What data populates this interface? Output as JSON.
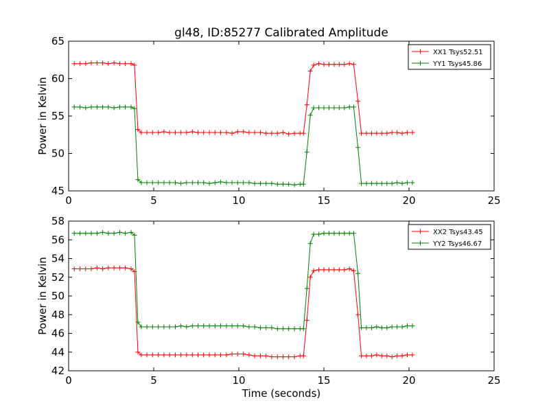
{
  "title": "gl48, ID:85277 Calibrated Amplitude",
  "chart_data": [
    {
      "type": "line",
      "title": "gl48, ID:85277 Calibrated Amplitude",
      "xlabel": "",
      "ylabel": "Power in Kelvin",
      "xlim": [
        0,
        25
      ],
      "ylim": [
        45,
        65
      ],
      "xticks": [
        0,
        5,
        10,
        15,
        20,
        25
      ],
      "yticks": [
        45,
        50,
        55,
        60,
        65
      ],
      "grid": false,
      "legend_position": "top-right",
      "x": [
        0.33,
        0.67,
        1.0,
        1.33,
        1.67,
        2.0,
        2.33,
        2.67,
        3.0,
        3.33,
        3.67,
        3.87,
        4.07,
        4.27,
        4.6,
        4.93,
        5.27,
        5.6,
        5.93,
        6.27,
        6.6,
        6.93,
        7.27,
        7.6,
        7.93,
        8.27,
        8.6,
        8.93,
        9.27,
        9.6,
        9.93,
        10.27,
        10.6,
        10.93,
        11.27,
        11.6,
        11.93,
        12.27,
        12.6,
        12.93,
        13.27,
        13.6,
        13.8,
        14.0,
        14.2,
        14.4,
        14.7,
        15.0,
        15.3,
        15.6,
        15.9,
        16.2,
        16.5,
        16.75,
        17.0,
        17.2,
        17.5,
        17.8,
        18.1,
        18.4,
        18.7,
        19.0,
        19.3,
        19.6,
        19.9,
        20.2
      ],
      "series": [
        {
          "name": "XX1 Tsys52.51",
          "color": "#ff0000",
          "values": [
            62.0,
            62.0,
            62.0,
            62.1,
            62.1,
            62.1,
            62.0,
            62.1,
            62.0,
            62.0,
            62.0,
            61.8,
            53.2,
            52.8,
            52.8,
            52.8,
            52.8,
            52.9,
            52.8,
            52.8,
            52.8,
            52.8,
            52.9,
            52.8,
            52.8,
            52.8,
            52.8,
            52.8,
            52.8,
            52.7,
            52.9,
            52.9,
            52.8,
            52.8,
            52.8,
            52.7,
            52.7,
            52.7,
            52.8,
            52.6,
            52.7,
            52.7,
            52.7,
            56.5,
            61.0,
            61.8,
            62.0,
            61.9,
            61.9,
            61.9,
            61.9,
            61.9,
            62.0,
            61.9,
            57.0,
            52.7,
            52.7,
            52.7,
            52.7,
            52.7,
            52.7,
            52.8,
            52.8,
            52.7,
            52.8,
            52.8
          ]
        },
        {
          "name": "YY1 Tsys45.86",
          "color": "#008000",
          "values": [
            56.2,
            56.2,
            56.1,
            56.2,
            56.2,
            56.2,
            56.2,
            56.1,
            56.2,
            56.2,
            56.2,
            56.0,
            46.5,
            46.1,
            46.1,
            46.1,
            46.1,
            46.1,
            46.1,
            46.1,
            46.0,
            46.1,
            46.1,
            46.1,
            46.1,
            46.0,
            46.1,
            46.2,
            46.1,
            46.1,
            46.1,
            46.1,
            46.1,
            46.0,
            46.0,
            46.0,
            46.0,
            45.9,
            45.9,
            45.9,
            45.8,
            45.9,
            45.9,
            50.2,
            55.1,
            56.1,
            56.1,
            56.1,
            56.1,
            56.1,
            56.1,
            56.1,
            56.2,
            56.2,
            50.8,
            46.0,
            46.0,
            46.0,
            46.0,
            46.0,
            46.0,
            46.0,
            46.1,
            46.0,
            46.1,
            46.1
          ]
        }
      ]
    },
    {
      "type": "line",
      "title": "",
      "xlabel": "Time (seconds)",
      "ylabel": "Power in Kelvin",
      "xlim": [
        0,
        25
      ],
      "ylim": [
        42,
        58
      ],
      "xticks": [
        0,
        5,
        10,
        15,
        20,
        25
      ],
      "yticks": [
        42,
        44,
        46,
        48,
        50,
        52,
        54,
        56,
        58
      ],
      "grid": false,
      "legend_position": "top-right",
      "x": [
        0.33,
        0.67,
        1.0,
        1.33,
        1.67,
        2.0,
        2.33,
        2.67,
        3.0,
        3.33,
        3.67,
        3.87,
        4.07,
        4.27,
        4.6,
        4.93,
        5.27,
        5.6,
        5.93,
        6.27,
        6.6,
        6.93,
        7.27,
        7.6,
        7.93,
        8.27,
        8.6,
        8.93,
        9.27,
        9.6,
        9.93,
        10.27,
        10.6,
        10.93,
        11.27,
        11.6,
        11.93,
        12.27,
        12.6,
        12.93,
        13.27,
        13.6,
        13.8,
        14.0,
        14.2,
        14.4,
        14.7,
        15.0,
        15.3,
        15.6,
        15.9,
        16.2,
        16.5,
        16.75,
        17.0,
        17.2,
        17.5,
        17.8,
        18.1,
        18.4,
        18.7,
        19.0,
        19.3,
        19.6,
        19.9,
        20.2
      ],
      "series": [
        {
          "name": "XX2 Tsys43.45",
          "color": "#ff0000",
          "values": [
            52.9,
            52.9,
            52.9,
            52.9,
            53.0,
            52.9,
            53.0,
            53.0,
            53.0,
            53.0,
            52.9,
            52.6,
            44.0,
            43.7,
            43.7,
            43.7,
            43.7,
            43.7,
            43.7,
            43.7,
            43.7,
            43.7,
            43.7,
            43.7,
            43.7,
            43.7,
            43.7,
            43.7,
            43.7,
            43.8,
            43.8,
            43.8,
            43.7,
            43.6,
            43.6,
            43.6,
            43.5,
            43.5,
            43.5,
            43.5,
            43.5,
            43.6,
            43.6,
            47.4,
            52.0,
            52.7,
            52.8,
            52.8,
            52.8,
            52.8,
            52.8,
            52.8,
            52.9,
            52.7,
            48.0,
            43.6,
            43.6,
            43.6,
            43.7,
            43.6,
            43.6,
            43.5,
            43.6,
            43.6,
            43.7,
            43.7
          ]
        },
        {
          "name": "YY2 Tsys46.67",
          "color": "#008000",
          "values": [
            56.7,
            56.7,
            56.7,
            56.7,
            56.7,
            56.8,
            56.7,
            56.7,
            56.8,
            56.7,
            56.8,
            56.5,
            47.2,
            46.7,
            46.7,
            46.7,
            46.7,
            46.7,
            46.7,
            46.7,
            46.8,
            46.7,
            46.8,
            46.8,
            46.8,
            46.8,
            46.8,
            46.8,
            46.8,
            46.8,
            46.8,
            46.8,
            46.7,
            46.7,
            46.6,
            46.6,
            46.6,
            46.5,
            46.5,
            46.5,
            46.5,
            46.5,
            46.5,
            50.8,
            55.6,
            56.6,
            56.6,
            56.7,
            56.7,
            56.7,
            56.7,
            56.7,
            56.7,
            56.7,
            52.4,
            46.6,
            46.6,
            46.6,
            46.7,
            46.6,
            46.6,
            46.7,
            46.7,
            46.7,
            46.8,
            46.8
          ]
        }
      ]
    }
  ]
}
